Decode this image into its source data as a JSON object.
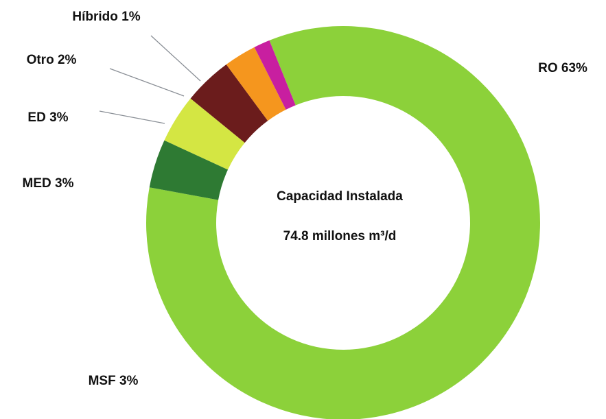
{
  "chart_data": {
    "type": "donut",
    "categories": [
      "RO",
      "MSF",
      "MED",
      "ED",
      "Otro",
      "Híbrido"
    ],
    "values": [
      63,
      3,
      3,
      3,
      2,
      1
    ],
    "value_labels": [
      "63%",
      "3%",
      "3%",
      "3%",
      "2%",
      "1%"
    ],
    "colors": [
      "#8cd13a",
      "#2e7a33",
      "#d4e643",
      "#6b1c1c",
      "#f5961e",
      "#c81fa0"
    ],
    "center_title": "Capacidad Instalada",
    "center_subtitle": "74.8 millones m³/d"
  }
}
